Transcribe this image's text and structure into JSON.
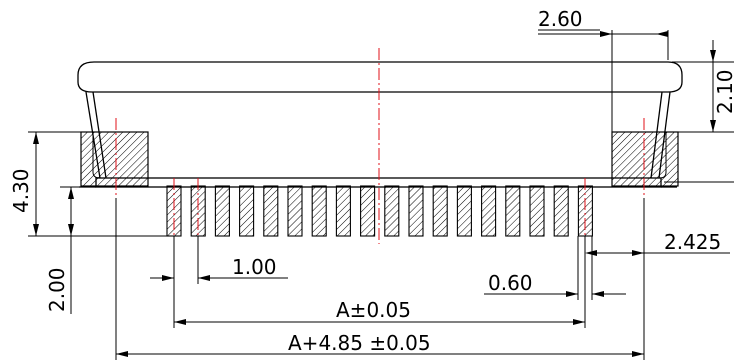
{
  "colors": {
    "line": "#000000",
    "centerline": "#e0101a",
    "hatch": "#000000",
    "background": "#ffffff"
  },
  "dimensions": {
    "d_2_60": "2.60",
    "d_2_10": "2.10",
    "d_4_30": "4.30",
    "d_2_00": "2.00",
    "d_1_00": "1.00",
    "d_2_425": "2.425",
    "d_0_60": "0.60",
    "d_A": "A±0.05",
    "d_A_total": "A+4.85  ±0.05"
  },
  "connector": {
    "pin_count": 18
  }
}
